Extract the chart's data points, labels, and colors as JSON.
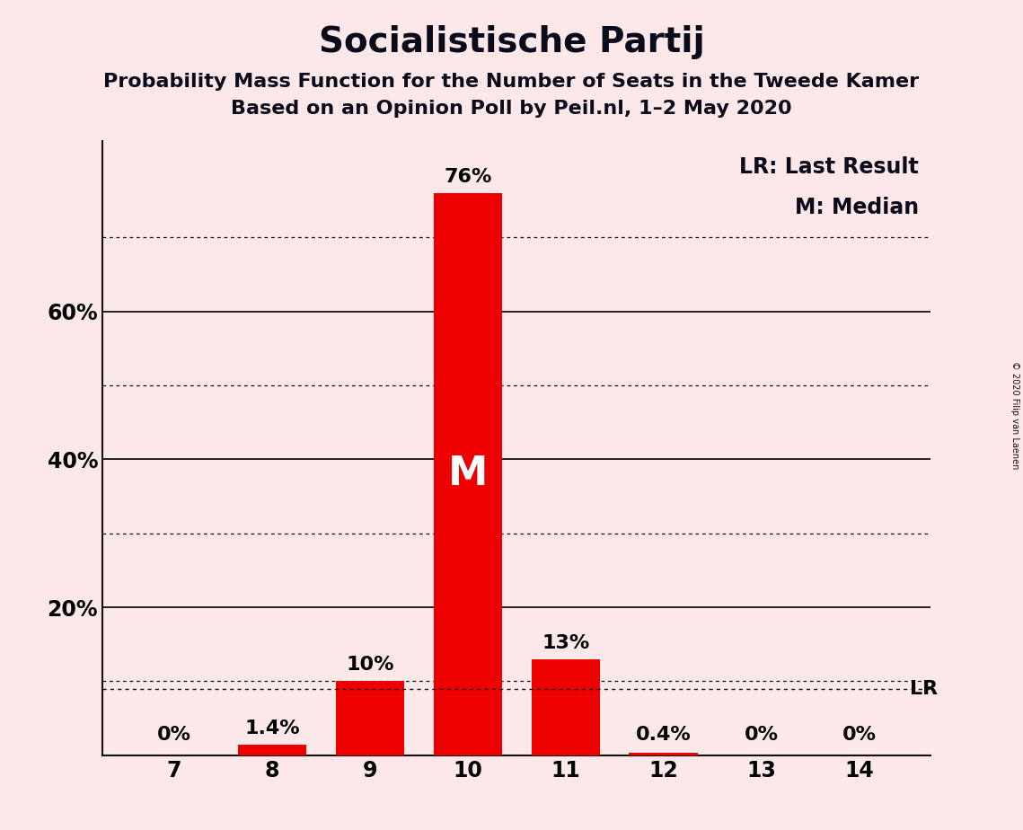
{
  "title": "Socialistische Partij",
  "subtitle1": "Probability Mass Function for the Number of Seats in the Tweede Kamer",
  "subtitle2": "Based on an Opinion Poll by Peil.nl, 1–2 May 2020",
  "copyright": "© 2020 Filip van Laenen",
  "categories": [
    7,
    8,
    9,
    10,
    11,
    12,
    13,
    14
  ],
  "values": [
    0.0,
    1.4,
    10.0,
    76.0,
    13.0,
    0.4,
    0.0,
    0.0
  ],
  "labels": [
    "0%",
    "1.4%",
    "10%",
    "76%",
    "13%",
    "0.4%",
    "0%",
    "0%"
  ],
  "bar_color": "#ee0000",
  "background_color": "#fce8e8",
  "bar_width": 0.7,
  "ylim_max": 83,
  "solid_yticks": [
    20,
    40,
    60
  ],
  "dotted_yticks": [
    10,
    30,
    50,
    70
  ],
  "displayed_yticks": [
    0,
    10,
    20,
    30,
    40,
    50,
    60,
    70
  ],
  "ytick_show_labels": [
    20,
    40,
    60
  ],
  "median_seat": 10,
  "lr_value": 9.0,
  "legend_lr": "LR: Last Result",
  "legend_m": "M: Median",
  "title_fontsize": 28,
  "subtitle_fontsize": 16,
  "label_fontsize": 16,
  "tick_fontsize": 17,
  "legend_fontsize": 17,
  "median_label_fontsize": 32,
  "copyright_fontsize": 7
}
